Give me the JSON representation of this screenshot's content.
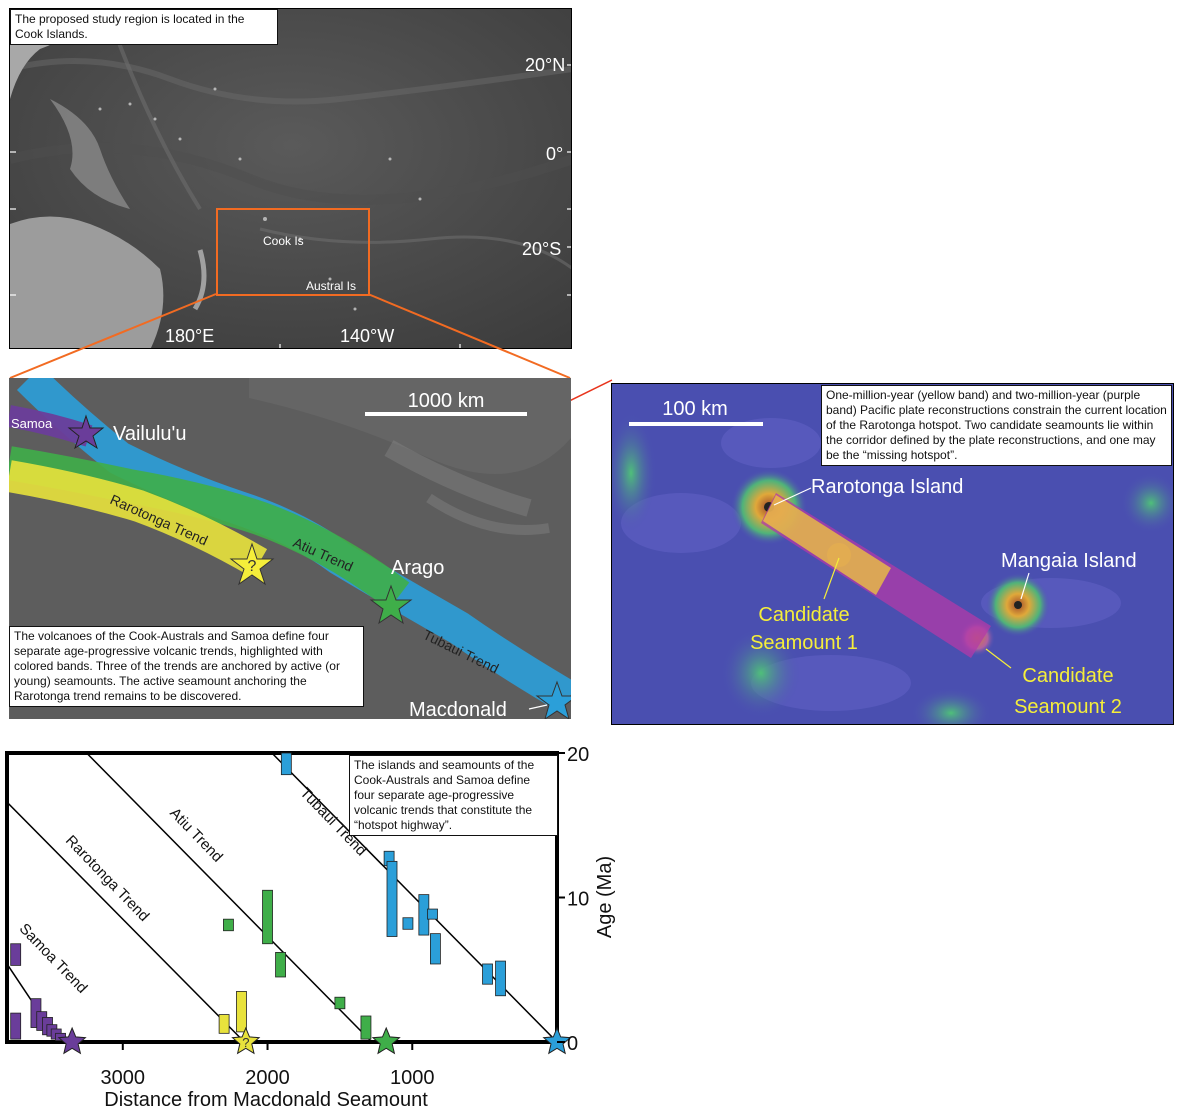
{
  "panel_a": {
    "caption": "The proposed study region is located in the Cook Islands.",
    "lat_labels": [
      "20°N",
      "0°",
      "20°S"
    ],
    "lon_labels": [
      "180°E",
      "140°W"
    ],
    "place_labels": [
      "Cook Is",
      "Austral Is"
    ]
  },
  "panel_b": {
    "scale_label": "1000 km",
    "trend_labels": [
      "Samoa",
      "Rarotonga Trend",
      "Atiu Trend",
      "Tubaui Trend"
    ],
    "seamount_labels": [
      "Vailulu'u",
      "Arago",
      "Macdonald"
    ],
    "unknown_marker": "?",
    "caption": "The volcanoes of the Cook-Australs and Samoa define four separate age-progressive volcanic trends, highlighted with colored bands. Three of the trends are anchored by active (or young) seamounts. The active seamount anchoring the Rarotonga trend remains to be discovered.",
    "band_colors": {
      "samoa": "#6a3d9a",
      "rarotonga": "#e8e23c",
      "atiu": "#3fae49",
      "tubaui": "#2b9fd9"
    }
  },
  "panel_c": {
    "scale_label": "100 km",
    "caption": "One-million-year (yellow band) and two-million-year (purple band) Pacific plate reconstructions constrain the current location of the Rarotonga hotspot. Two candidate seamounts lie within the corridor defined by the plate reconstructions, and one may be the “missing hotspot”.",
    "islands": [
      "Rarotonga Island",
      "Mangaia Island"
    ],
    "candidate_1": [
      "Candidate",
      "Seamount 1"
    ],
    "candidate_2": [
      "Candidate",
      "Seamount 2"
    ]
  },
  "chart_data": {
    "type": "scatter",
    "caption": "The islands and seamounts of the Cook-Australs and Samoa define four separate age-progressive volcanic trends that constitute the “hotspot highway”.",
    "xlabel": "Distance from Macdonald Seamount",
    "ylabel": "Age (Ma)",
    "x_ticks": [
      3000,
      2000,
      1000
    ],
    "y_ticks": [
      20,
      10,
      0
    ],
    "xlim": [
      3800,
      0
    ],
    "ylim": [
      0,
      20
    ],
    "trend_lines": [
      {
        "name": "Samoa Trend",
        "x0": 3800,
        "y0": 5.4,
        "x1": 3440,
        "y1": 0,
        "color": "#000000"
      },
      {
        "name": "Rarotonga Trend",
        "x0": 3800,
        "y0": 16.6,
        "x1": 2160,
        "y1": 0,
        "color": "#000000"
      },
      {
        "name": "Atiu Trend",
        "x0": 3250,
        "y0": 20,
        "x1": 1280,
        "y1": 0,
        "color": "#000000"
      },
      {
        "name": "Tubaui Trend",
        "x0": 1970,
        "y0": 20,
        "x1": 0,
        "y1": 0,
        "color": "#000000"
      }
    ],
    "series": [
      {
        "color": "#6a3d9a",
        "bars": [
          [
            3740,
            5.3,
            6.8
          ],
          [
            3740,
            0.2,
            2.0
          ],
          [
            3600,
            1.0,
            3.0
          ],
          [
            3560,
            0.8,
            2.1
          ],
          [
            3520,
            0.5,
            1.7
          ],
          [
            3490,
            0.4,
            1.2
          ],
          [
            3460,
            0.2,
            0.9
          ],
          [
            3430,
            0.1,
            0.6
          ]
        ]
      },
      {
        "color": "#e8e23c",
        "bars": [
          [
            2300,
            0.6,
            1.9
          ],
          [
            2180,
            0.7,
            3.5
          ]
        ]
      },
      {
        "color": "#3fae49",
        "bars": [
          [
            2270,
            7.7,
            8.5
          ],
          [
            2000,
            6.8,
            10.5
          ],
          [
            1910,
            4.5,
            6.2
          ],
          [
            1500,
            2.3,
            3.1
          ],
          [
            1320,
            0.2,
            1.8
          ]
        ]
      },
      {
        "color": "#2b9fd9",
        "bars": [
          [
            1870,
            18.5,
            20
          ],
          [
            1160,
            12.2,
            13.2
          ],
          [
            1140,
            7.3,
            12.5
          ],
          [
            1030,
            7.8,
            8.6
          ],
          [
            920,
            7.4,
            10.2
          ],
          [
            860,
            8.5,
            9.2
          ],
          [
            840,
            5.4,
            7.5
          ],
          [
            480,
            4.0,
            5.4
          ],
          [
            390,
            3.2,
            5.6
          ]
        ]
      }
    ],
    "stars": [
      {
        "x": 3350,
        "y": 0,
        "color": "#6a3d9a",
        "label": ""
      },
      {
        "x": 2150,
        "y": 0,
        "color": "#e8e23c",
        "label": "?"
      },
      {
        "x": 1180,
        "y": 0,
        "color": "#3fae49",
        "label": ""
      },
      {
        "x": 0,
        "y": 0,
        "color": "#2b9fd9",
        "label": ""
      }
    ]
  }
}
